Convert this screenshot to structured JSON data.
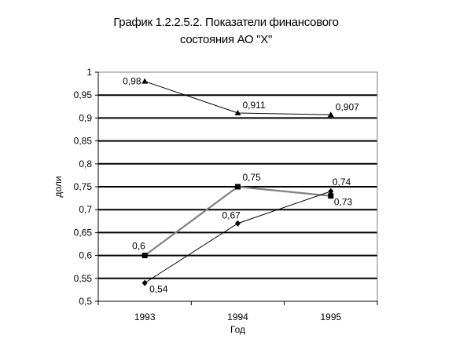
{
  "chart_data": {
    "type": "line",
    "title_lines": [
      "График 1.2.2.5.2. Показатели финансового",
      "состояния АО \"Х\""
    ],
    "xlabel": "Год",
    "ylabel": "доли",
    "categories": [
      "1993",
      "1994",
      "1995"
    ],
    "ylim": [
      0.5,
      1
    ],
    "yticks": [
      "0,5",
      "0,55",
      "0,6",
      "0,65",
      "0,7",
      "0,75",
      "0,8",
      "0,85",
      "0,9",
      "0,95",
      "1"
    ],
    "ytick_values": [
      0.5,
      0.55,
      0.6,
      0.65,
      0.7,
      0.75,
      0.8,
      0.85,
      0.9,
      0.95,
      1
    ],
    "grid": true,
    "legend": "none",
    "series": [
      {
        "values": [
          0.98,
          0.911,
          0.907
        ],
        "labels": [
          "0,98",
          "0,911",
          "0,907"
        ],
        "marker": "triangle",
        "color": "#000000"
      },
      {
        "values": [
          0.6,
          0.75,
          0.73
        ],
        "labels": [
          "0,6",
          "0,75",
          "0,73"
        ],
        "marker": "square",
        "color": "#808080"
      },
      {
        "values": [
          0.54,
          0.67,
          0.74
        ],
        "labels": [
          "0,54",
          "0,67",
          "0,74"
        ],
        "marker": "diamond",
        "color": "#000000"
      }
    ]
  }
}
